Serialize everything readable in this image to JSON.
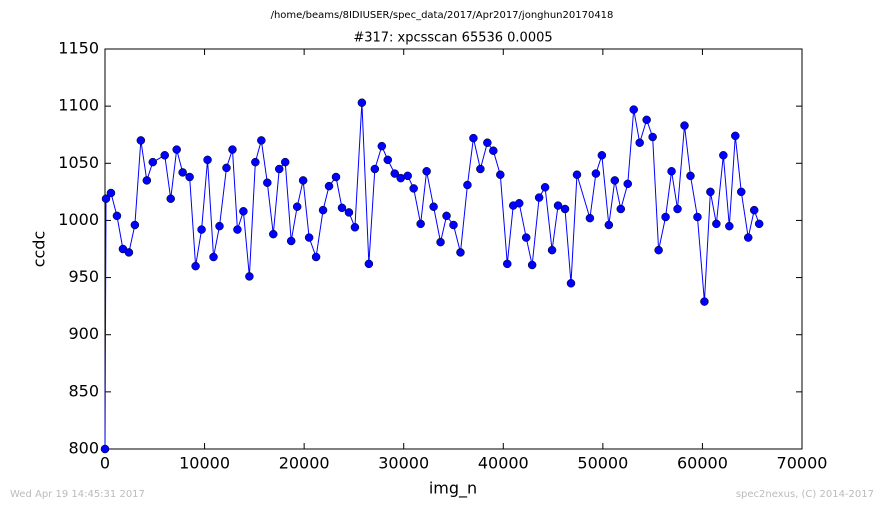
{
  "chart_data": {
    "type": "line",
    "suptitle": "/home/beams/8IDIUSER/spec_data/2017/Apr2017/jonghun20170418",
    "title": "#317: xpcsscan 65536 0.0005",
    "xlabel": "img_n",
    "ylabel": "ccdc",
    "footer_left": "Wed Apr 19 14:45:31 2017",
    "footer_right": "spec2nexus, (C) 2014-2017",
    "xlim": [
      0,
      70000
    ],
    "xticks": [
      0,
      10000,
      20000,
      30000,
      40000,
      50000,
      60000,
      70000
    ],
    "ylim": [
      800,
      1150
    ],
    "yticks": [
      800,
      850,
      900,
      950,
      1000,
      1050,
      1100,
      1150
    ],
    "series": [
      {
        "color": "#0000ff",
        "x": [
          0,
          100,
          600,
          1200,
          1800,
          2400,
          3000,
          3600,
          4200,
          4800,
          6000,
          6600,
          7200,
          7800,
          8500,
          9100,
          9700,
          10300,
          10900,
          11500,
          12200,
          12800,
          13300,
          13900,
          14500,
          15100,
          15700,
          16300,
          16900,
          17500,
          18100,
          18700,
          19300,
          19900,
          20500,
          21200,
          21900,
          22500,
          23200,
          23800,
          24500,
          25100,
          25800,
          26500,
          27100,
          27800,
          28400,
          29100,
          29700,
          30400,
          31000,
          31700,
          32300,
          33000,
          33700,
          34300,
          35000,
          35700,
          36400,
          37000,
          37700,
          38400,
          39000,
          39700,
          40400,
          41000,
          41600,
          42300,
          42900,
          43600,
          44200,
          44900,
          45500,
          46200,
          46800,
          47400,
          48700,
          49300,
          49900,
          50600,
          51200,
          51800,
          52500,
          53100,
          53700,
          54400,
          55000,
          55600,
          56300,
          56900,
          57500,
          58200,
          58800,
          59500,
          60200,
          60800,
          61400,
          62100,
          62700,
          63300,
          63900,
          64600,
          65200,
          65700
        ],
        "values": [
          800,
          1019,
          1024,
          1004,
          975,
          972,
          996,
          1070,
          1035,
          1051,
          1057,
          1019,
          1062,
          1042,
          1038,
          960,
          992,
          1053,
          968,
          995,
          1046,
          1062,
          992,
          1008,
          951,
          1051,
          1070,
          1033,
          988,
          1045,
          1051,
          982,
          1012,
          1035,
          985,
          968,
          1009,
          1030,
          1038,
          1011,
          1007,
          994,
          1103,
          962,
          1045,
          1065,
          1053,
          1041,
          1037,
          1039,
          1028,
          997,
          1043,
          1012,
          981,
          1004,
          996,
          972,
          1031,
          1072,
          1045,
          1068,
          1061,
          1040,
          962,
          1013,
          1015,
          985,
          961,
          1020,
          1029,
          974,
          1013,
          1010,
          945,
          1040,
          1002,
          1041,
          1057,
          996,
          1035,
          1010,
          1032,
          1097,
          1068,
          1088,
          1073,
          974,
          1003,
          1043,
          1010,
          1083,
          1039,
          1003,
          929,
          1025,
          997,
          1057,
          995,
          1074,
          1025,
          985,
          1009,
          997
        ]
      }
    ]
  }
}
